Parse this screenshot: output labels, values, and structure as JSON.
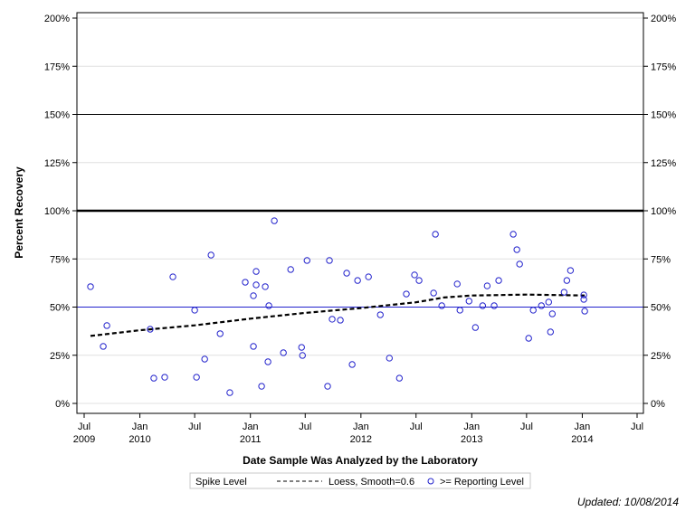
{
  "chart_data": {
    "type": "scatter",
    "xlabel": "Date Sample Was Analyzed by the Laboratory",
    "ylabel": "Percent Recovery",
    "ylim": [
      0,
      200
    ],
    "xlim": [
      "2009-06-01",
      "2014-08-01"
    ],
    "y_ticks": [
      "0%",
      "25%",
      "50%",
      "75%",
      "100%",
      "125%",
      "150%",
      "175%",
      "200%"
    ],
    "x_ticks": [
      {
        "date": "2009-07-01",
        "l1": "Jul",
        "l2": "2009"
      },
      {
        "date": "2010-01-01",
        "l1": "Jan",
        "l2": "2010"
      },
      {
        "date": "2010-07-01",
        "l1": "Jul",
        "l2": ""
      },
      {
        "date": "2011-01-01",
        "l1": "Jan",
        "l2": "2011"
      },
      {
        "date": "2011-07-01",
        "l1": "Jul",
        "l2": ""
      },
      {
        "date": "2012-01-01",
        "l1": "Jan",
        "l2": "2012"
      },
      {
        "date": "2012-07-01",
        "l1": "Jul",
        "l2": ""
      },
      {
        "date": "2013-01-01",
        "l1": "Jan",
        "l2": "2013"
      },
      {
        "date": "2013-07-01",
        "l1": "Jul",
        "l2": ""
      },
      {
        "date": "2014-01-01",
        "l1": "Jan",
        "l2": "2014"
      },
      {
        "date": "2014-07-01",
        "l1": "Jul",
        "l2": ""
      }
    ],
    "grid": true,
    "reference_lines": [
      {
        "y": 150,
        "color": "#000000",
        "style": "thin"
      },
      {
        "y": 100,
        "color": "#000000",
        "style": "thick"
      },
      {
        "y": 50,
        "color": "#2222cc",
        "style": "thin"
      }
    ],
    "points": [
      [
        "2009-07-22",
        60.6
      ],
      [
        "2009-09-02",
        29.6
      ],
      [
        "2009-09-14",
        40.4
      ],
      [
        "2010-02-04",
        38.5
      ],
      [
        "2010-02-16",
        13.1
      ],
      [
        "2010-03-24",
        13.6
      ],
      [
        "2010-04-20",
        65.7
      ],
      [
        "2010-07-01",
        48.4
      ],
      [
        "2010-07-07",
        13.6
      ],
      [
        "2010-08-03",
        23.0
      ],
      [
        "2010-08-24",
        77.0
      ],
      [
        "2010-09-23",
        36.2
      ],
      [
        "2010-10-25",
        5.6
      ],
      [
        "2010-12-15",
        62.9
      ],
      [
        "2011-01-11",
        55.9
      ],
      [
        "2011-01-20",
        68.5
      ],
      [
        "2011-01-20",
        61.5
      ],
      [
        "2011-01-11",
        29.6
      ],
      [
        "2011-02-07",
        8.9
      ],
      [
        "2011-02-19",
        60.6
      ],
      [
        "2011-02-28",
        21.6
      ],
      [
        "2011-03-03",
        50.7
      ],
      [
        "2011-03-21",
        94.8
      ],
      [
        "2011-04-20",
        26.3
      ],
      [
        "2011-05-14",
        69.5
      ],
      [
        "2011-06-19",
        29.1
      ],
      [
        "2011-06-22",
        24.9
      ],
      [
        "2011-07-07",
        74.2
      ],
      [
        "2011-09-13",
        8.9
      ],
      [
        "2011-09-19",
        74.2
      ],
      [
        "2011-09-28",
        43.7
      ],
      [
        "2011-10-25",
        43.2
      ],
      [
        "2011-11-15",
        67.6
      ],
      [
        "2011-12-03",
        20.2
      ],
      [
        "2011-12-21",
        63.8
      ],
      [
        "2012-01-26",
        65.7
      ],
      [
        "2012-03-05",
        46.0
      ],
      [
        "2012-04-04",
        23.5
      ],
      [
        "2012-05-07",
        13.1
      ],
      [
        "2012-05-30",
        56.8
      ],
      [
        "2012-06-26",
        66.7
      ],
      [
        "2012-07-11",
        63.8
      ],
      [
        "2012-08-28",
        57.3
      ],
      [
        "2012-09-03",
        87.8
      ],
      [
        "2012-09-24",
        50.7
      ],
      [
        "2012-11-14",
        62.0
      ],
      [
        "2012-11-23",
        48.4
      ],
      [
        "2012-12-23",
        53.1
      ],
      [
        "2013-01-13",
        39.4
      ],
      [
        "2013-02-06",
        50.7
      ],
      [
        "2013-02-21",
        61.0
      ],
      [
        "2013-03-16",
        50.7
      ],
      [
        "2013-03-31",
        63.8
      ],
      [
        "2013-05-18",
        87.8
      ],
      [
        "2013-05-30",
        79.8
      ],
      [
        "2013-06-08",
        72.3
      ],
      [
        "2013-07-08",
        33.8
      ],
      [
        "2013-07-23",
        48.4
      ],
      [
        "2013-08-19",
        50.7
      ],
      [
        "2013-09-12",
        52.6
      ],
      [
        "2013-09-18",
        37.1
      ],
      [
        "2013-09-24",
        46.5
      ],
      [
        "2013-11-02",
        57.7
      ],
      [
        "2013-11-11",
        63.8
      ],
      [
        "2013-11-23",
        69.0
      ],
      [
        "2014-01-06",
        56.3
      ],
      [
        "2014-01-06",
        54.0
      ],
      [
        "2014-01-09",
        47.9
      ]
    ],
    "loess": [
      [
        "2009-07-22",
        35.0
      ],
      [
        "2010-01-01",
        38.0
      ],
      [
        "2010-07-01",
        40.5
      ],
      [
        "2011-01-01",
        44.0
      ],
      [
        "2011-07-01",
        47.0
      ],
      [
        "2012-01-01",
        49.5
      ],
      [
        "2012-07-01",
        52.5
      ],
      [
        "2012-10-01",
        55.0
      ],
      [
        "2013-01-01",
        56.0
      ],
      [
        "2013-07-01",
        56.5
      ],
      [
        "2014-01-09",
        56.0
      ]
    ],
    "colors": {
      "points": "#2222cc",
      "loess": "#000000",
      "grid": "#e0e0e0"
    },
    "legend": {
      "position": "bottom",
      "title": "Spike Level",
      "entries": [
        "Loess, Smooth=0.6",
        ">= Reporting Level"
      ]
    }
  },
  "footer": {
    "updated": "Updated: 10/08/2014"
  }
}
